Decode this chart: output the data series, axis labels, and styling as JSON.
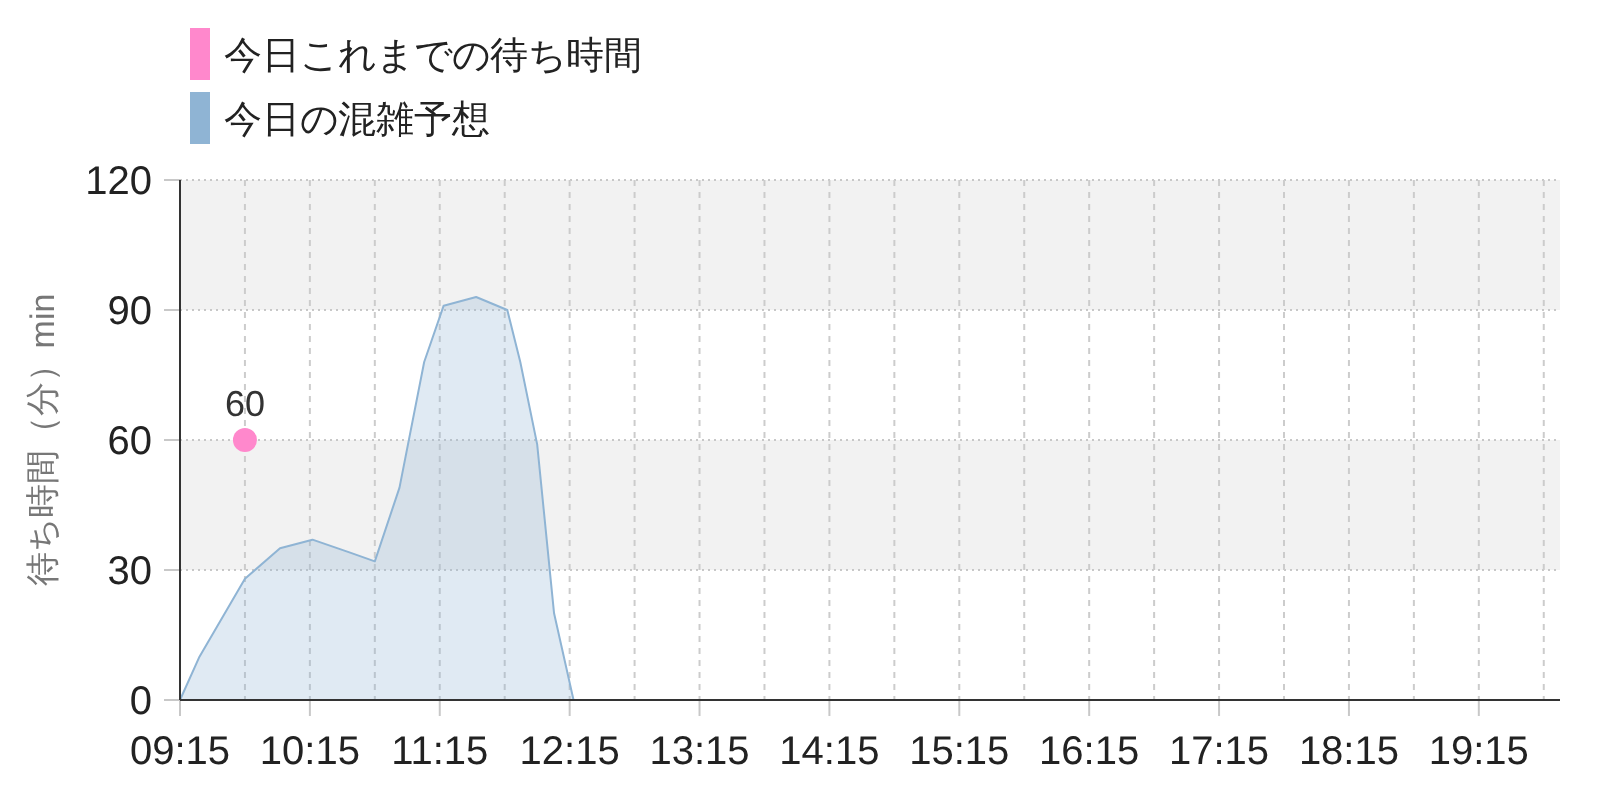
{
  "chart_data": {
    "type": "area",
    "ylabel": "待ち時間（分）min",
    "xlim": [
      9.25,
      19.875
    ],
    "ylim": [
      0,
      120
    ],
    "xticks": [
      {
        "value": 9.25,
        "label": "09:15"
      },
      {
        "value": 9.75,
        "label": null
      },
      {
        "value": 10.25,
        "label": "10:15"
      },
      {
        "value": 10.75,
        "label": null
      },
      {
        "value": 11.25,
        "label": "11:15"
      },
      {
        "value": 11.75,
        "label": null
      },
      {
        "value": 12.25,
        "label": "12:15"
      },
      {
        "value": 12.75,
        "label": null
      },
      {
        "value": 13.25,
        "label": "13:15"
      },
      {
        "value": 13.75,
        "label": null
      },
      {
        "value": 14.25,
        "label": "14:15"
      },
      {
        "value": 14.75,
        "label": null
      },
      {
        "value": 15.25,
        "label": "15:15"
      },
      {
        "value": 15.75,
        "label": null
      },
      {
        "value": 16.25,
        "label": "16:15"
      },
      {
        "value": 16.75,
        "label": null
      },
      {
        "value": 17.25,
        "label": "17:15"
      },
      {
        "value": 17.75,
        "label": null
      },
      {
        "value": 18.25,
        "label": "18:15"
      },
      {
        "value": 18.75,
        "label": null
      },
      {
        "value": 19.25,
        "label": "19:15"
      },
      {
        "value": 19.75,
        "label": null
      }
    ],
    "yticks": [
      0,
      30,
      60,
      90,
      120
    ],
    "grid": true,
    "legend": "top left",
    "bands": [
      {
        "axis": "y",
        "from": 30,
        "to": 60,
        "color": "#f2f2f2"
      },
      {
        "axis": "y",
        "from": 90,
        "to": 120,
        "color": "#f2f2f2"
      }
    ],
    "series": [
      {
        "name": "今日これまでの待ち時間",
        "type": "scatter",
        "marker": "circle",
        "color": "#ff88cc",
        "data_labels": true,
        "x": [
          9.75
        ],
        "values": [
          60
        ]
      },
      {
        "name": "今日の混雑予想",
        "type": "area",
        "color": "#8fb4d4",
        "x": [
          9.25,
          9.4,
          9.75,
          10.02,
          10.27,
          10.56,
          10.75,
          10.94,
          11.13,
          11.28,
          11.53,
          11.77,
          11.87,
          12.0,
          12.13,
          12.28,
          13.0,
          14.0,
          15.0,
          16.0,
          17.0,
          18.0,
          19.0,
          19.75
        ],
        "values": [
          0,
          10,
          28,
          35,
          37,
          34,
          32,
          49,
          78,
          91,
          93,
          90,
          78,
          59,
          20,
          0,
          0,
          0,
          0,
          0,
          0,
          0,
          0,
          0
        ]
      }
    ]
  }
}
